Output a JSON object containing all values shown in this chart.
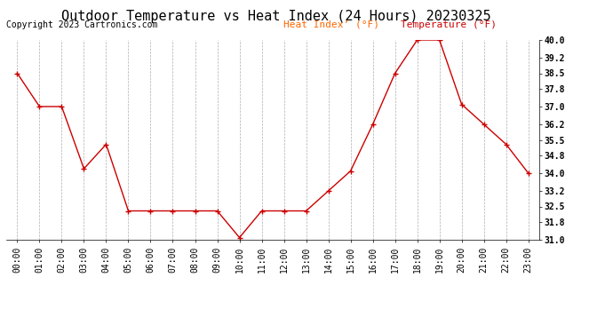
{
  "title": "Outdoor Temperature vs Heat Index (24 Hours) 20230325",
  "copyright": "Copyright 2023 Cartronics.com",
  "x_labels": [
    "00:00",
    "01:00",
    "02:00",
    "03:00",
    "04:00",
    "05:00",
    "06:00",
    "07:00",
    "08:00",
    "09:00",
    "10:00",
    "11:00",
    "12:00",
    "13:00",
    "14:00",
    "15:00",
    "16:00",
    "17:00",
    "18:00",
    "19:00",
    "20:00",
    "21:00",
    "22:00",
    "23:00"
  ],
  "temperature": [
    38.5,
    37.0,
    37.0,
    34.2,
    35.3,
    32.3,
    32.3,
    32.3,
    32.3,
    32.3,
    31.1,
    32.3,
    32.3,
    32.3,
    33.2,
    34.1,
    36.2,
    38.5,
    40.0,
    40.0,
    37.1,
    36.2,
    35.3,
    34.0
  ],
  "ylim_min": 31.0,
  "ylim_max": 40.0,
  "yticks": [
    31.0,
    31.8,
    32.5,
    33.2,
    34.0,
    34.8,
    35.5,
    36.2,
    37.0,
    37.8,
    38.5,
    39.2,
    40.0
  ],
  "ytick_labels": [
    "31.0",
    "31.8",
    "32.5",
    "33.2",
    "34.0",
    "34.8",
    "35.5",
    "36.2",
    "37.0",
    "37.8",
    "38.5",
    "39.2",
    "40.0"
  ],
  "line_color": "#cc0000",
  "background_color": "#ffffff",
  "grid_color": "#999999",
  "title_color": "#000000",
  "copyright_color": "#000000",
  "legend_heat_color": "#ff6600",
  "legend_temp_color": "#cc0000",
  "title_fontsize": 11,
  "copyright_fontsize": 7,
  "legend_fontsize": 8,
  "tick_fontsize": 7
}
